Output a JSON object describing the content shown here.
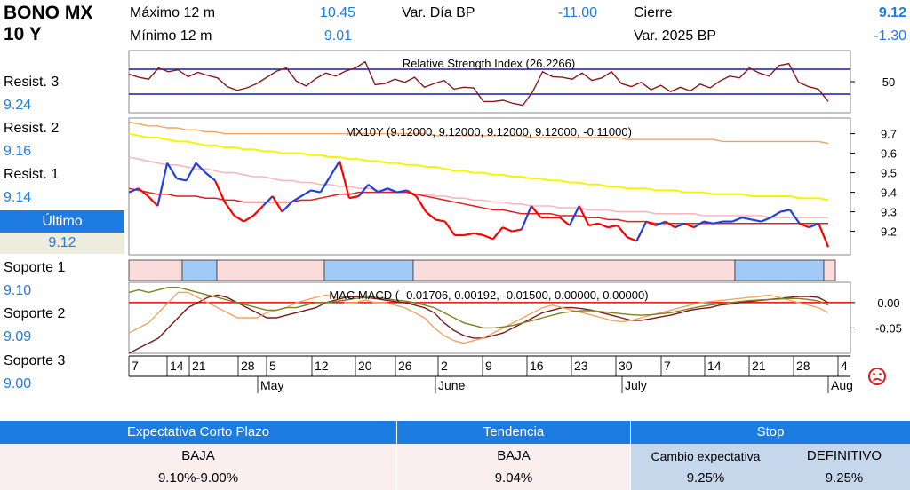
{
  "header": {
    "title_line1": "BONO MX",
    "title_line2": "10 Y",
    "max_label": "Máximo 12 m",
    "max_value": "10.45",
    "min_label": "Mínimo 12 m",
    "min_value": "9.01",
    "vardia_label": "Var. Día BP",
    "vardia_value": "-11.00",
    "cierre_label": "Cierre",
    "cierre_value": "9.12",
    "var2025_label": "Var. 2025 BP",
    "var2025_value": "-1.30"
  },
  "levels": {
    "r3_label": "Resist. 3",
    "r3_value": "9.24",
    "r2_label": "Resist. 2",
    "r2_value": "9.16",
    "r1_label": "Resist. 1",
    "r1_value": "9.14",
    "ultimo_label": "Último",
    "ultimo_value": "9.12",
    "s1_label": "Soporte 1",
    "s1_value": "9.10",
    "s2_label": "Soporte 2",
    "s2_value": "9.09",
    "s3_label": "Soporte 3",
    "s3_value": "9.00"
  },
  "bottom": {
    "expectativa_header": "Expectativa Corto Plazo",
    "expectativa_value": "BAJA",
    "expectativa_range": "9.10%-9.00%",
    "tendencia_header": "Tendencia",
    "tendencia_value": "BAJA",
    "tendencia_level": "9.04%",
    "stop_header": "Stop",
    "cambio_label": "Cambio expectativa",
    "cambio_value": "9.25%",
    "definitivo_label": "DEFINITIVO",
    "definitivo_value": "9.25%"
  },
  "icons": {
    "status": "sad-face-icon"
  },
  "colors": {
    "accent": "#1e7be0",
    "price_up": "#1f3fe0",
    "price_down": "#ff0000",
    "ma_orange": "#f4a460",
    "ma_yellow": "#f5f500",
    "ma_pink": "#f5b8c0",
    "ma_red": "#e02020",
    "band_pink": "#fbdcdc",
    "band_blue": "#9fcbf6"
  },
  "chart_data": [
    {
      "type": "line",
      "title": "Relative Strength Index (26.2266)",
      "ytick_labels": [
        "50"
      ],
      "ylim": [
        0,
        100
      ],
      "bands": [
        70,
        30
      ],
      "values": [
        62,
        57,
        54,
        72,
        66,
        69,
        58,
        65,
        60,
        56,
        42,
        36,
        40,
        47,
        57,
        67,
        72,
        51,
        43,
        55,
        64,
        59,
        67,
        72,
        82,
        45,
        47,
        54,
        49,
        57,
        41,
        47,
        52,
        38,
        41,
        40,
        18,
        18,
        20,
        15,
        12,
        34,
        66,
        58,
        57,
        54,
        64,
        52,
        56,
        66,
        47,
        42,
        49,
        37,
        44,
        34,
        41,
        35,
        46,
        40,
        51,
        59,
        56,
        72,
        64,
        59,
        76,
        79,
        49,
        42,
        38,
        18
      ]
    },
    {
      "type": "line",
      "title": "MX10Y (9.12000, 9.12000, 9.12000, 9.12000, -0.11000)",
      "ytick_labels": [
        "9.7",
        "9.6",
        "9.5",
        "9.4",
        "9.3",
        "9.2"
      ],
      "ylim": [
        9.08,
        9.78
      ],
      "series": [
        {
          "values": [
            9.4,
            9.42,
            9.38,
            9.33,
            9.55,
            9.47,
            9.46,
            9.55,
            9.5,
            9.46,
            9.35,
            9.28,
            9.25,
            9.28,
            9.33,
            9.38,
            9.3,
            9.35,
            9.38,
            9.41,
            9.4,
            9.48,
            9.56,
            9.37,
            9.38,
            9.44,
            9.4,
            9.42,
            9.4,
            9.41,
            9.38,
            9.3,
            9.26,
            9.25,
            9.18,
            9.18,
            9.19,
            9.18,
            9.16,
            9.22,
            9.2,
            9.21,
            9.33,
            9.27,
            9.27,
            9.27,
            9.23,
            9.33,
            9.23,
            9.24,
            9.22,
            9.23,
            9.17,
            9.15,
            9.25,
            9.23,
            9.25,
            9.22,
            9.24,
            9.22,
            9.25,
            9.24,
            9.25,
            9.25,
            9.27,
            9.26,
            9.25,
            9.27,
            9.3,
            9.31,
            9.24,
            9.22,
            9.24,
            9.12
          ]
        },
        {
          "values": [
            9.76,
            9.75,
            9.74,
            9.74,
            9.73,
            9.73,
            9.72,
            9.72,
            9.71,
            9.71,
            9.7,
            9.7,
            9.7,
            9.7,
            9.7,
            9.7,
            9.7,
            9.7,
            9.7,
            9.7,
            9.7,
            9.7,
            9.7,
            9.7,
            9.7,
            9.7,
            9.7,
            9.7,
            9.7,
            9.7,
            9.7,
            9.7,
            9.69,
            9.69,
            9.69,
            9.69,
            9.69,
            9.69,
            9.69,
            9.69,
            9.69,
            9.69,
            9.68,
            9.68,
            9.68,
            9.68,
            9.68,
            9.68,
            9.68,
            9.68,
            9.68,
            9.68,
            9.67,
            9.67,
            9.67,
            9.67,
            9.67,
            9.67,
            9.67,
            9.67,
            9.67,
            9.67,
            9.66,
            9.66,
            9.66,
            9.66,
            9.66,
            9.66,
            9.66,
            9.66,
            9.66,
            9.66,
            9.66,
            9.65
          ]
        },
        {
          "values": [
            9.7,
            9.69,
            9.68,
            9.68,
            9.67,
            9.66,
            9.66,
            9.65,
            9.64,
            9.64,
            9.63,
            9.63,
            9.62,
            9.62,
            9.61,
            9.61,
            9.6,
            9.6,
            9.6,
            9.59,
            9.59,
            9.58,
            9.58,
            9.57,
            9.57,
            9.56,
            9.56,
            9.55,
            9.55,
            9.54,
            9.54,
            9.53,
            9.53,
            9.52,
            9.51,
            9.51,
            9.5,
            9.5,
            9.49,
            9.49,
            9.48,
            9.48,
            9.47,
            9.47,
            9.46,
            9.46,
            9.45,
            9.45,
            9.44,
            9.44,
            9.43,
            9.43,
            9.42,
            9.42,
            9.42,
            9.41,
            9.41,
            9.41,
            9.4,
            9.4,
            9.4,
            9.39,
            9.39,
            9.39,
            9.39,
            9.38,
            9.38,
            9.38,
            9.38,
            9.38,
            9.37,
            9.37,
            9.37,
            9.36
          ]
        },
        {
          "values": [
            9.58,
            9.57,
            9.56,
            9.55,
            9.54,
            9.54,
            9.53,
            9.52,
            9.52,
            9.51,
            9.5,
            9.5,
            9.49,
            9.48,
            9.48,
            9.47,
            9.46,
            9.46,
            9.45,
            9.45,
            9.44,
            9.44,
            9.43,
            9.43,
            9.42,
            9.42,
            9.41,
            9.41,
            9.4,
            9.4,
            9.39,
            9.39,
            9.38,
            9.38,
            9.37,
            9.37,
            9.36,
            9.36,
            9.35,
            9.35,
            9.34,
            9.34,
            9.33,
            9.33,
            9.33,
            9.32,
            9.32,
            9.32,
            9.31,
            9.31,
            9.31,
            9.3,
            9.3,
            9.3,
            9.3,
            9.29,
            9.29,
            9.29,
            9.29,
            9.29,
            9.28,
            9.28,
            9.28,
            9.28,
            9.28,
            9.28,
            9.28,
            9.27,
            9.27,
            9.27,
            9.27,
            9.27,
            9.27,
            9.27
          ]
        },
        {
          "values": [
            9.42,
            9.41,
            9.4,
            9.39,
            9.39,
            9.38,
            9.38,
            9.38,
            9.37,
            9.37,
            9.36,
            9.36,
            9.35,
            9.35,
            9.35,
            9.35,
            9.35,
            9.35,
            9.36,
            9.36,
            9.37,
            9.38,
            9.39,
            9.39,
            9.4,
            9.4,
            9.4,
            9.4,
            9.4,
            9.4,
            9.39,
            9.38,
            9.37,
            9.36,
            9.35,
            9.34,
            9.33,
            9.32,
            9.31,
            9.31,
            9.3,
            9.29,
            9.29,
            9.29,
            9.29,
            9.28,
            9.28,
            9.28,
            9.27,
            9.27,
            9.26,
            9.26,
            9.25,
            9.25,
            9.25,
            9.24,
            9.24,
            9.24,
            9.24,
            9.24,
            9.24,
            9.24,
            9.24,
            9.24,
            9.24,
            9.24,
            9.24,
            9.24,
            9.24,
            9.24,
            9.24,
            9.24,
            9.24,
            9.24
          ]
        }
      ]
    },
    {
      "type": "line",
      "title": "MAC MACD ( -0.01706, 0.00192, -0.01500, 0.00000, 0.00000)",
      "ytick_labels": [
        "0.00",
        "-0.05"
      ],
      "ylim": [
        -0.1,
        0.04
      ],
      "zero_line": 0,
      "series": [
        {
          "values": [
            -0.1,
            -0.09,
            -0.08,
            -0.07,
            -0.05,
            -0.03,
            -0.01,
            0.0,
            0.01,
            0.015,
            0.01,
            0.0,
            -0.01,
            -0.02,
            -0.03,
            -0.03,
            -0.025,
            -0.02,
            -0.015,
            -0.01,
            0.0,
            0.005,
            0.01,
            0.012,
            0.01,
            0.008,
            0.005,
            0.002,
            0.0,
            -0.005,
            -0.01,
            -0.02,
            -0.04,
            -0.055,
            -0.065,
            -0.07,
            -0.07,
            -0.065,
            -0.06,
            -0.05,
            -0.04,
            -0.03,
            -0.02,
            -0.015,
            -0.01,
            -0.01,
            -0.012,
            -0.015,
            -0.02,
            -0.025,
            -0.03,
            -0.035,
            -0.035,
            -0.032,
            -0.028,
            -0.025,
            -0.02,
            -0.015,
            -0.012,
            -0.01,
            -0.005,
            -0.003,
            0.0,
            0.002,
            0.004,
            0.006,
            0.008,
            0.01,
            0.012,
            0.012,
            0.01,
            0.0
          ]
        },
        {
          "values": [
            -0.06,
            -0.05,
            -0.04,
            -0.02,
            0.0,
            0.02,
            0.02,
            0.01,
            0.0,
            -0.01,
            -0.02,
            -0.03,
            -0.03,
            -0.03,
            -0.02,
            -0.015,
            -0.01,
            0.0,
            0.005,
            0.01,
            0.015,
            0.01,
            0.0,
            0.0,
            0.005,
            0.0,
            0.0,
            -0.005,
            -0.01,
            -0.02,
            -0.03,
            -0.05,
            -0.065,
            -0.075,
            -0.08,
            -0.075,
            -0.07,
            -0.06,
            -0.05,
            -0.04,
            -0.03,
            -0.02,
            -0.01,
            -0.005,
            -0.01,
            -0.015,
            -0.02,
            -0.025,
            -0.03,
            -0.035,
            -0.038,
            -0.035,
            -0.03,
            -0.025,
            -0.02,
            -0.015,
            -0.01,
            -0.005,
            0.0,
            0.002,
            0.004,
            0.006,
            0.008,
            0.01,
            0.012,
            0.015,
            0.01,
            0.005,
            0.0,
            -0.005,
            -0.01,
            -0.02
          ]
        },
        {
          "values": [
            0.02,
            0.025,
            0.02,
            0.025,
            0.03,
            0.03,
            0.025,
            0.02,
            0.015,
            0.01,
            0.005,
            0.0,
            -0.005,
            -0.01,
            -0.015,
            -0.015,
            -0.01,
            -0.01,
            -0.005,
            0.0,
            0.0,
            0.002,
            0.005,
            0.008,
            0.01,
            0.01,
            0.008,
            0.005,
            0.003,
            0.0,
            -0.005,
            -0.01,
            -0.02,
            -0.03,
            -0.04,
            -0.045,
            -0.05,
            -0.05,
            -0.048,
            -0.045,
            -0.04,
            -0.035,
            -0.03,
            -0.025,
            -0.02,
            -0.018,
            -0.016,
            -0.016,
            -0.018,
            -0.02,
            -0.022,
            -0.024,
            -0.025,
            -0.024,
            -0.022,
            -0.02,
            -0.016,
            -0.012,
            -0.008,
            -0.005,
            -0.002,
            0.0,
            0.002,
            0.004,
            0.005,
            0.006,
            0.007,
            0.008,
            0.008,
            0.006,
            0.003,
            -0.005
          ]
        }
      ]
    },
    {
      "type": "axis",
      "xtick_labels": [
        "7",
        "14",
        "21",
        "28",
        "5",
        "12",
        "20",
        "26",
        "2",
        "9",
        "16",
        "23",
        "30",
        "7",
        "14",
        "21",
        "28",
        "4"
      ],
      "month_labels": [
        "May",
        "June",
        "July",
        "Aug"
      ]
    }
  ]
}
